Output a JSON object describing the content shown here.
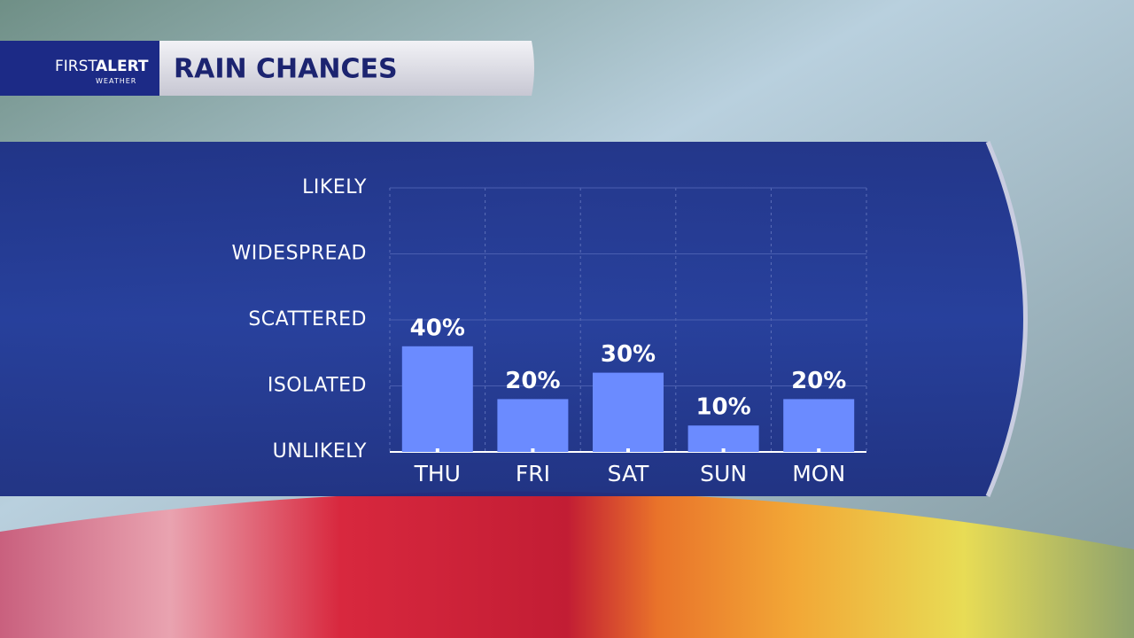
{
  "logo": {
    "first": "FIRST",
    "alert": "ALERT",
    "sub": "WEATHER"
  },
  "chart_data": {
    "type": "bar",
    "title": "RAIN CHANCES",
    "categories": [
      "THU",
      "FRI",
      "SAT",
      "SUN",
      "MON"
    ],
    "values": [
      40,
      20,
      30,
      10,
      20
    ],
    "value_labels": [
      "40%",
      "20%",
      "30%",
      "10%",
      "20%"
    ],
    "color": "#6b8bff",
    "ylim": [
      0,
      100
    ],
    "yticks": [
      {
        "value": 0,
        "label": "UNLIKELY"
      },
      {
        "value": 25,
        "label": "ISOLATED"
      },
      {
        "value": 50,
        "label": "SCATTERED"
      },
      {
        "value": 75,
        "label": "WIDESPREAD"
      },
      {
        "value": 100,
        "label": "LIKELY"
      }
    ],
    "grid": true
  }
}
